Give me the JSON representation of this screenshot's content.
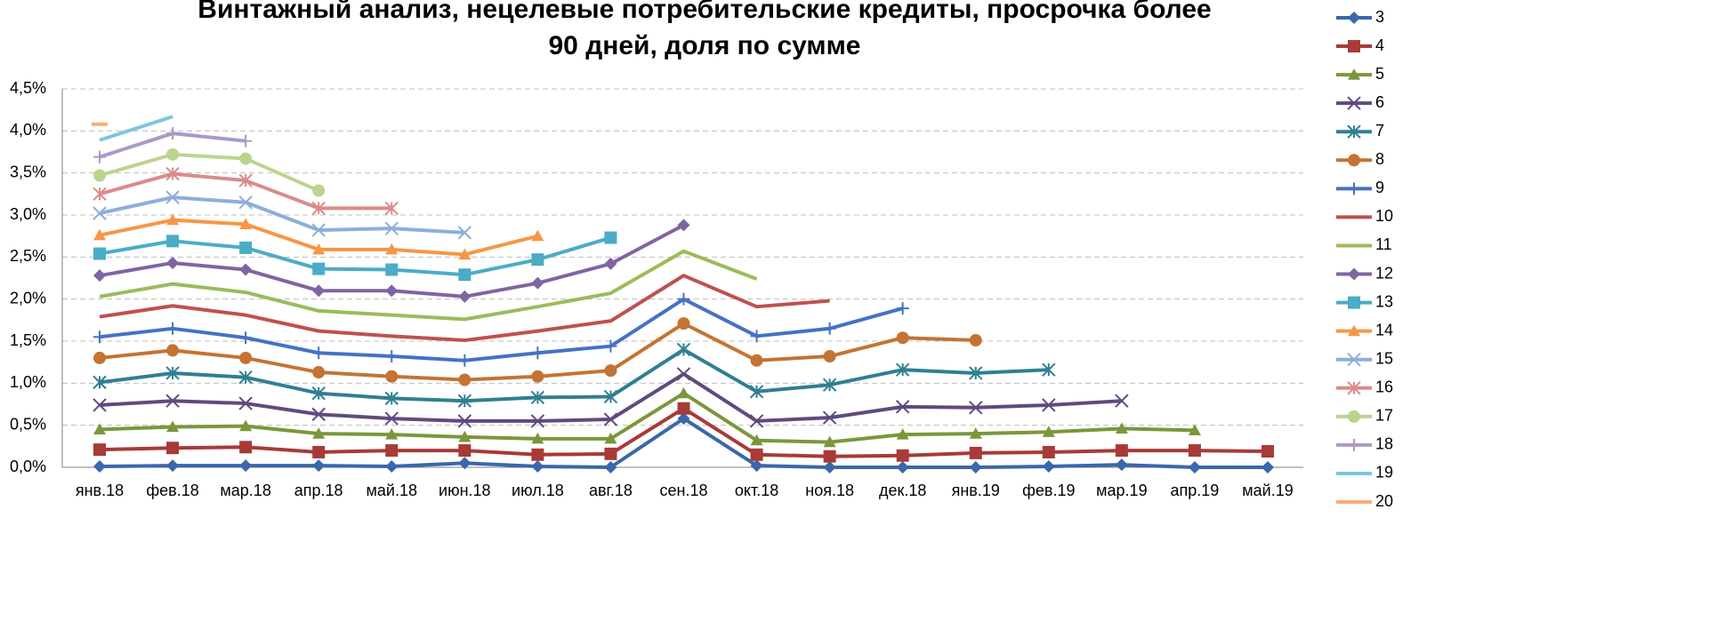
{
  "chart_data": {
    "type": "line",
    "title": [
      "Винтажный анализ, нецелевые потребительские кредиты, просрочка более",
      "90 дней, доля по сумме"
    ],
    "categories": [
      "янв.18",
      "фев.18",
      "мар.18",
      "апр.18",
      "май.18",
      "июн.18",
      "июл.18",
      "авг.18",
      "сен.18",
      "окт.18",
      "ноя.18",
      "дек.18",
      "янв.19",
      "фев.19",
      "мар.19",
      "апр.19",
      "май.19"
    ],
    "ylim": [
      0,
      4.5
    ],
    "yticks": [
      {
        "value": 0,
        "label": "0,0%"
      },
      {
        "value": 0.5,
        "label": "0,5%"
      },
      {
        "value": 1,
        "label": "1,0%"
      },
      {
        "value": 1.5,
        "label": "1,5%"
      },
      {
        "value": 2,
        "label": "2,0%"
      },
      {
        "value": 2.5,
        "label": "2,5%"
      },
      {
        "value": 3,
        "label": "3,0%"
      },
      {
        "value": 3.5,
        "label": "3,5%"
      },
      {
        "value": 4,
        "label": "4,0%"
      },
      {
        "value": 4.5,
        "label": "4,5%"
      }
    ],
    "grid": true,
    "legend": "right",
    "series": [
      {
        "name": "3",
        "color": "#3a67ab",
        "marker": "diamond",
        "values": [
          0.01,
          0.02,
          0.02,
          0.02,
          0.01,
          0.05,
          0.01,
          0.0,
          0.58,
          0.02,
          0.0,
          0.0,
          0.0,
          0.01,
          0.03,
          0.0,
          0.0
        ]
      },
      {
        "name": "4",
        "color": "#a83a37",
        "marker": "square",
        "values": [
          0.21,
          0.23,
          0.24,
          0.18,
          0.2,
          0.2,
          0.15,
          0.16,
          0.7,
          0.15,
          0.13,
          0.14,
          0.17,
          0.18,
          0.2,
          0.2,
          0.19
        ]
      },
      {
        "name": "5",
        "color": "#7b973a",
        "marker": "triangle",
        "values": [
          0.45,
          0.48,
          0.49,
          0.4,
          0.39,
          0.36,
          0.34,
          0.34,
          0.88,
          0.32,
          0.3,
          0.39,
          0.4,
          0.42,
          0.46,
          0.44,
          null
        ]
      },
      {
        "name": "6",
        "color": "#5f4a7e",
        "marker": "x",
        "values": [
          0.74,
          0.79,
          0.76,
          0.63,
          0.58,
          0.55,
          0.55,
          0.57,
          1.11,
          0.55,
          0.59,
          0.72,
          0.71,
          0.74,
          0.79,
          null,
          null
        ]
      },
      {
        "name": "7",
        "color": "#2f7f92",
        "marker": "asterisk",
        "values": [
          1.01,
          1.12,
          1.07,
          0.88,
          0.82,
          0.79,
          0.83,
          0.84,
          1.4,
          0.9,
          0.98,
          1.16,
          1.12,
          1.16,
          null,
          null,
          null
        ]
      },
      {
        "name": "8",
        "color": "#c47332",
        "marker": "circle",
        "values": [
          1.3,
          1.39,
          1.3,
          1.13,
          1.08,
          1.04,
          1.08,
          1.15,
          1.71,
          1.27,
          1.32,
          1.54,
          1.51,
          null,
          null,
          null,
          null
        ]
      },
      {
        "name": "9",
        "color": "#4472c4",
        "marker": "plus",
        "values": [
          1.55,
          1.65,
          1.54,
          1.36,
          1.32,
          1.27,
          1.36,
          1.44,
          2.0,
          1.56,
          1.65,
          1.89,
          null,
          null,
          null,
          null,
          null
        ]
      },
      {
        "name": "10",
        "color": "#c0504d",
        "marker": "none",
        "values": [
          1.79,
          1.92,
          1.81,
          1.62,
          1.56,
          1.51,
          1.62,
          1.74,
          2.28,
          1.91,
          1.98,
          null,
          null,
          null,
          null,
          null,
          null
        ]
      },
      {
        "name": "11",
        "color": "#9bbb59",
        "marker": "none",
        "values": [
          2.03,
          2.18,
          2.08,
          1.86,
          1.81,
          1.76,
          1.91,
          2.07,
          2.57,
          2.24,
          null,
          null,
          null,
          null,
          null,
          null,
          null
        ]
      },
      {
        "name": "12",
        "color": "#8064a2",
        "marker": "diamond",
        "values": [
          2.28,
          2.43,
          2.35,
          2.1,
          2.1,
          2.03,
          2.19,
          2.42,
          2.88,
          null,
          null,
          null,
          null,
          null,
          null,
          null,
          null
        ]
      },
      {
        "name": "13",
        "color": "#4bacc6",
        "marker": "square",
        "values": [
          2.54,
          2.69,
          2.61,
          2.36,
          2.35,
          2.29,
          2.47,
          2.73,
          null,
          null,
          null,
          null,
          null,
          null,
          null,
          null,
          null
        ]
      },
      {
        "name": "14",
        "color": "#f79646",
        "marker": "triangle",
        "values": [
          2.76,
          2.94,
          2.89,
          2.59,
          2.59,
          2.53,
          2.75,
          null,
          null,
          null,
          null,
          null,
          null,
          null,
          null,
          null,
          null
        ]
      },
      {
        "name": "15",
        "color": "#8eaed8",
        "marker": "x",
        "values": [
          3.02,
          3.21,
          3.15,
          2.82,
          2.84,
          2.79,
          null,
          null,
          null,
          null,
          null,
          null,
          null,
          null,
          null,
          null,
          null
        ]
      },
      {
        "name": "16",
        "color": "#d98c8a",
        "marker": "asterisk",
        "values": [
          3.25,
          3.49,
          3.41,
          3.08,
          3.08,
          null,
          null,
          null,
          null,
          null,
          null,
          null,
          null,
          null,
          null,
          null,
          null
        ]
      },
      {
        "name": "17",
        "color": "#bcd38e",
        "marker": "circle",
        "values": [
          3.47,
          3.72,
          3.67,
          3.29,
          null,
          null,
          null,
          null,
          null,
          null,
          null,
          null,
          null,
          null,
          null,
          null,
          null
        ]
      },
      {
        "name": "18",
        "color": "#ab99c6",
        "marker": "plus",
        "values": [
          3.69,
          3.97,
          3.88,
          null,
          null,
          null,
          null,
          null,
          null,
          null,
          null,
          null,
          null,
          null,
          null,
          null,
          null
        ]
      },
      {
        "name": "19",
        "color": "#7fc6d8",
        "marker": "none",
        "values": [
          3.89,
          4.17,
          null,
          null,
          null,
          null,
          null,
          null,
          null,
          null,
          null,
          null,
          null,
          null,
          null,
          null,
          null
        ]
      },
      {
        "name": "20",
        "color": "#f9ae7a",
        "marker": "none",
        "values": [
          4.08,
          null,
          null,
          null,
          null,
          null,
          null,
          null,
          null,
          null,
          null,
          null,
          null,
          null,
          null,
          null,
          null
        ]
      }
    ]
  }
}
